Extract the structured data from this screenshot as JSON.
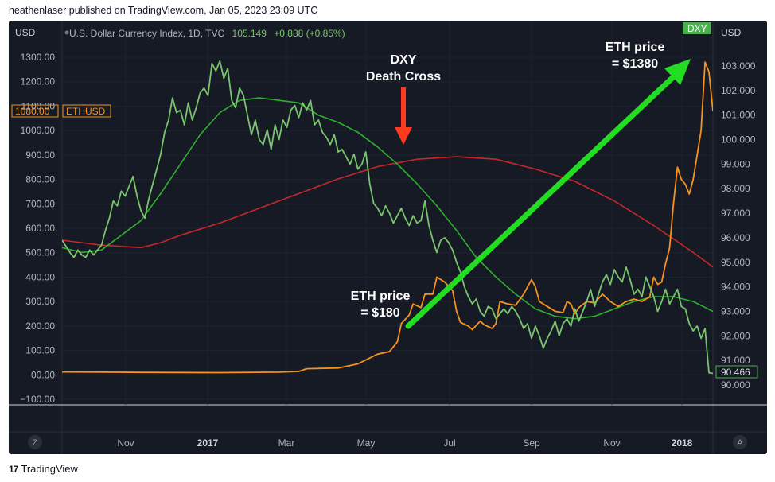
{
  "publisher_line": "heathenlaser published on TradingView.com, Jan 05, 2023 23:09 UTC",
  "footer_brand": "TradingView",
  "footer_logo_glyph": "17",
  "chart_data": {
    "type": "line",
    "header": {
      "left_unit": "USD",
      "right_unit": "USD",
      "symbol_text": "U.S. Dollar Currency Index, 1D, TVC",
      "last_value": "105.149",
      "change": "+0.888 (+0.85%)"
    },
    "left_axis": {
      "ticks": [
        "1300.00",
        "1200.00",
        "1100.00",
        "1000.00",
        "900.00",
        "800.00",
        "700.00",
        "600.00",
        "500.00",
        "400.00",
        "300.00",
        "200.00",
        "100.00",
        "00.00",
        "−100.00"
      ],
      "range": [
        -100,
        1300
      ]
    },
    "right_axis": {
      "ticks": [
        "103.000",
        "102.000",
        "101.000",
        "100.000",
        "99.000",
        "98.000",
        "97.000",
        "96.000",
        "95.000",
        "94.000",
        "93.000",
        "92.000",
        "91.000",
        "90.000"
      ],
      "range": [
        90,
        103
      ]
    },
    "x_axis": {
      "ticks": [
        {
          "label": "Nov",
          "bold": false
        },
        {
          "label": "2017",
          "bold": true
        },
        {
          "label": "Mar",
          "bold": false
        },
        {
          "label": "May",
          "bold": false
        },
        {
          "label": "Jul",
          "bold": false
        },
        {
          "label": "Sep",
          "bold": false
        },
        {
          "label": "Nov",
          "bold": false
        },
        {
          "label": "2018",
          "bold": true
        }
      ]
    },
    "badges": {
      "eth_price": "1080.00",
      "eth_symbol": "ETHUSD",
      "dxy_symbol": "DXY",
      "dxy_value": "90.466"
    },
    "corner_buttons": {
      "left": "Z",
      "right": "A"
    },
    "annotations": {
      "death_cross_line1": "DXY",
      "death_cross_line2": "Death Cross",
      "eth_low_line1": "ETH price",
      "eth_low_line2": "= $180",
      "eth_high_line1": "ETH price",
      "eth_high_line2": "=  $1380"
    },
    "colors": {
      "dxy": "#7bc46e",
      "ma50": "#2fae2f",
      "ma200": "#c62828",
      "eth": "#f7931a",
      "arrow_green": "#22dd22",
      "arrow_red": "#ff3b1f",
      "background": "#161a25"
    },
    "series": [
      {
        "name": "DXY",
        "color": "#7bc46e",
        "axis": "right",
        "values": [
          [
            0,
            95.9
          ],
          [
            2,
            95.4
          ],
          [
            3,
            95.2
          ],
          [
            4,
            95.5
          ],
          [
            5,
            95.3
          ],
          [
            6,
            95.2
          ],
          [
            7,
            95.5
          ],
          [
            8,
            95.3
          ],
          [
            9,
            95.5
          ],
          [
            10,
            95.7
          ],
          [
            11,
            96.3
          ],
          [
            12,
            96.8
          ],
          [
            13,
            97.5
          ],
          [
            14,
            97.3
          ],
          [
            15,
            97.9
          ],
          [
            16,
            97.7
          ],
          [
            17,
            98.1
          ],
          [
            18,
            98.5
          ],
          [
            19,
            97.7
          ],
          [
            20,
            97.1
          ],
          [
            21,
            96.8
          ],
          [
            22,
            97.6
          ],
          [
            23,
            98.2
          ],
          [
            24,
            98.8
          ],
          [
            25,
            99.4
          ],
          [
            26,
            100.3
          ],
          [
            27,
            100.8
          ],
          [
            28,
            101.7
          ],
          [
            29,
            101.1
          ],
          [
            30,
            101.2
          ],
          [
            31,
            100.6
          ],
          [
            32,
            101.5
          ],
          [
            33,
            100.8
          ],
          [
            34,
            101.3
          ],
          [
            35,
            101.9
          ],
          [
            36,
            102.1
          ],
          [
            37,
            101.8
          ],
          [
            38,
            103.1
          ],
          [
            39,
            102.8
          ],
          [
            40,
            103.2
          ],
          [
            41,
            102.5
          ],
          [
            42,
            102.9
          ],
          [
            43,
            101.6
          ],
          [
            44,
            101.3
          ],
          [
            45,
            102.1
          ],
          [
            46,
            101.8
          ],
          [
            47,
            101.0
          ],
          [
            48,
            100.2
          ],
          [
            49,
            100.8
          ],
          [
            50,
            100.0
          ],
          [
            51,
            99.8
          ],
          [
            52,
            100.4
          ],
          [
            53,
            99.6
          ],
          [
            54,
            100.6
          ],
          [
            55,
            100.0
          ],
          [
            56,
            100.8
          ],
          [
            57,
            100.5
          ],
          [
            58,
            101.2
          ],
          [
            59,
            101.4
          ],
          [
            60,
            100.9
          ],
          [
            61,
            101.5
          ],
          [
            62,
            101.2
          ],
          [
            63,
            101.6
          ],
          [
            64,
            100.6
          ],
          [
            65,
            100.8
          ],
          [
            66,
            100.3
          ],
          [
            67,
            100.1
          ],
          [
            68,
            99.8
          ],
          [
            69,
            100.2
          ],
          [
            70,
            99.5
          ],
          [
            71,
            99.6
          ],
          [
            72,
            99.3
          ],
          [
            73,
            99.0
          ],
          [
            74,
            99.4
          ],
          [
            75,
            98.8
          ],
          [
            76,
            99.0
          ],
          [
            77,
            99.5
          ],
          [
            78,
            98.2
          ],
          [
            79,
            97.4
          ],
          [
            80,
            97.2
          ],
          [
            81,
            96.9
          ],
          [
            82,
            97.3
          ],
          [
            83,
            97.0
          ],
          [
            84,
            96.6
          ],
          [
            85,
            96.9
          ],
          [
            86,
            97.2
          ],
          [
            87,
            96.8
          ],
          [
            88,
            96.5
          ],
          [
            89,
            96.9
          ],
          [
            90,
            96.6
          ],
          [
            91,
            96.7
          ],
          [
            92,
            97.5
          ],
          [
            93,
            96.5
          ],
          [
            94,
            95.9
          ],
          [
            95,
            95.4
          ],
          [
            96,
            95.9
          ],
          [
            97,
            96.0
          ],
          [
            98,
            95.8
          ],
          [
            99,
            95.5
          ],
          [
            100,
            95.0
          ],
          [
            101,
            94.6
          ],
          [
            102,
            94.0
          ],
          [
            103,
            93.6
          ],
          [
            104,
            93.3
          ],
          [
            105,
            93.5
          ],
          [
            106,
            93.0
          ],
          [
            107,
            92.8
          ],
          [
            108,
            93.2
          ],
          [
            109,
            93.1
          ],
          [
            110,
            92.7
          ],
          [
            111,
            92.9
          ],
          [
            112,
            93.1
          ],
          [
            113,
            92.9
          ],
          [
            114,
            93.2
          ],
          [
            115,
            93.0
          ],
          [
            116,
            92.7
          ],
          [
            117,
            92.3
          ],
          [
            118,
            92.5
          ],
          [
            119,
            91.9
          ],
          [
            120,
            92.4
          ],
          [
            121,
            92.0
          ],
          [
            122,
            91.5
          ],
          [
            123,
            91.9
          ],
          [
            124,
            92.2
          ],
          [
            125,
            92.6
          ],
          [
            126,
            92.0
          ],
          [
            127,
            92.5
          ],
          [
            128,
            92.7
          ],
          [
            129,
            92.4
          ],
          [
            130,
            93.1
          ],
          [
            131,
            92.6
          ],
          [
            132,
            93.0
          ],
          [
            133,
            93.4
          ],
          [
            134,
            93.9
          ],
          [
            135,
            93.2
          ],
          [
            136,
            93.7
          ],
          [
            137,
            94.2
          ],
          [
            138,
            94.5
          ],
          [
            139,
            94.1
          ],
          [
            140,
            94.7
          ],
          [
            141,
            94.4
          ],
          [
            142,
            94.2
          ],
          [
            143,
            94.8
          ],
          [
            144,
            94.3
          ],
          [
            145,
            93.7
          ],
          [
            146,
            93.9
          ],
          [
            147,
            93.6
          ],
          [
            148,
            94.4
          ],
          [
            149,
            94.0
          ],
          [
            150,
            93.6
          ],
          [
            151,
            93.0
          ],
          [
            152,
            93.4
          ],
          [
            153,
            93.9
          ],
          [
            154,
            93.3
          ],
          [
            155,
            93.6
          ],
          [
            156,
            93.9
          ],
          [
            157,
            93.2
          ],
          [
            158,
            93.1
          ],
          [
            159,
            92.5
          ],
          [
            160,
            92.2
          ],
          [
            161,
            92.4
          ],
          [
            162,
            91.9
          ],
          [
            163,
            92.3
          ],
          [
            164,
            90.5
          ],
          [
            165,
            90.47
          ]
        ]
      },
      {
        "name": "DXY MA 50",
        "color": "#2fae2f",
        "axis": "right",
        "values": [
          [
            0,
            95.6
          ],
          [
            5,
            95.4
          ],
          [
            10,
            95.5
          ],
          [
            15,
            96.1
          ],
          [
            20,
            96.7
          ],
          [
            25,
            97.8
          ],
          [
            30,
            99.0
          ],
          [
            35,
            100.2
          ],
          [
            40,
            101.1
          ],
          [
            45,
            101.6
          ],
          [
            50,
            101.7
          ],
          [
            55,
            101.6
          ],
          [
            60,
            101.5
          ],
          [
            65,
            101.0
          ],
          [
            70,
            100.7
          ],
          [
            75,
            100.3
          ],
          [
            80,
            99.7
          ],
          [
            85,
            99.0
          ],
          [
            90,
            98.2
          ],
          [
            95,
            97.3
          ],
          [
            100,
            96.3
          ],
          [
            105,
            95.2
          ],
          [
            110,
            94.4
          ],
          [
            115,
            93.7
          ],
          [
            120,
            93.1
          ],
          [
            125,
            92.8
          ],
          [
            130,
            92.7
          ],
          [
            135,
            92.8
          ],
          [
            140,
            93.1
          ],
          [
            145,
            93.4
          ],
          [
            150,
            93.6
          ],
          [
            155,
            93.6
          ],
          [
            160,
            93.4
          ],
          [
            165,
            93.0
          ]
        ]
      },
      {
        "name": "DXY MA 200",
        "color": "#c62828",
        "axis": "right",
        "values": [
          [
            0,
            95.9
          ],
          [
            10,
            95.7
          ],
          [
            20,
            95.6
          ],
          [
            25,
            95.8
          ],
          [
            30,
            96.1
          ],
          [
            40,
            96.6
          ],
          [
            50,
            97.2
          ],
          [
            60,
            97.8
          ],
          [
            70,
            98.4
          ],
          [
            80,
            98.9
          ],
          [
            90,
            99.2
          ],
          [
            100,
            99.3
          ],
          [
            110,
            99.2
          ],
          [
            120,
            98.8
          ],
          [
            130,
            98.3
          ],
          [
            140,
            97.5
          ],
          [
            150,
            96.5
          ],
          [
            160,
            95.4
          ],
          [
            165,
            94.8
          ]
        ]
      },
      {
        "name": "ETHUSD",
        "color": "#f7931a",
        "axis": "left",
        "values": [
          [
            0,
            12
          ],
          [
            20,
            10
          ],
          [
            40,
            9
          ],
          [
            55,
            11
          ],
          [
            60,
            14
          ],
          [
            62,
            25
          ],
          [
            70,
            28
          ],
          [
            75,
            45
          ],
          [
            80,
            85
          ],
          [
            83,
            95
          ],
          [
            85,
            135
          ],
          [
            86,
            210
          ],
          [
            88,
            245
          ],
          [
            89,
            290
          ],
          [
            91,
            275
          ],
          [
            92,
            330
          ],
          [
            94,
            330
          ],
          [
            95,
            400
          ],
          [
            97,
            380
          ],
          [
            99,
            345
          ],
          [
            100,
            260
          ],
          [
            101,
            215
          ],
          [
            103,
            200
          ],
          [
            104,
            185
          ],
          [
            106,
            220
          ],
          [
            107,
            205
          ],
          [
            109,
            190
          ],
          [
            110,
            210
          ],
          [
            111,
            300
          ],
          [
            113,
            290
          ],
          [
            115,
            285
          ],
          [
            117,
            330
          ],
          [
            119,
            390
          ],
          [
            120,
            360
          ],
          [
            121,
            300
          ],
          [
            123,
            280
          ],
          [
            125,
            260
          ],
          [
            127,
            255
          ],
          [
            128,
            300
          ],
          [
            129,
            290
          ],
          [
            130,
            250
          ],
          [
            131,
            275
          ],
          [
            133,
            300
          ],
          [
            135,
            295
          ],
          [
            137,
            330
          ],
          [
            139,
            300
          ],
          [
            141,
            280
          ],
          [
            143,
            300
          ],
          [
            145,
            310
          ],
          [
            147,
            300
          ],
          [
            149,
            320
          ],
          [
            150,
            400
          ],
          [
            151,
            370
          ],
          [
            152,
            380
          ],
          [
            153,
            455
          ],
          [
            154,
            520
          ],
          [
            155,
            700
          ],
          [
            156,
            850
          ],
          [
            157,
            800
          ],
          [
            158,
            780
          ],
          [
            159,
            740
          ],
          [
            160,
            800
          ],
          [
            161,
            900
          ],
          [
            162,
            1000
          ],
          [
            163,
            1280
          ],
          [
            164,
            1240
          ],
          [
            165,
            1080
          ]
        ]
      }
    ]
  }
}
